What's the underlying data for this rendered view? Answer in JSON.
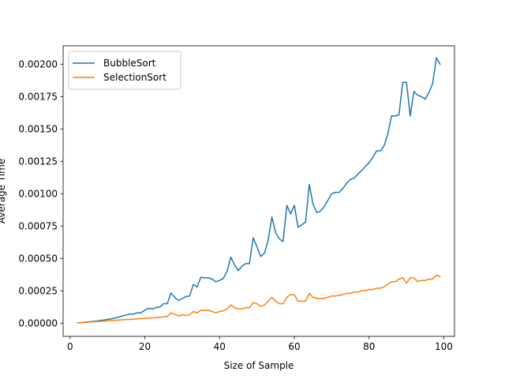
{
  "chart_data": {
    "type": "line",
    "title": "",
    "xlabel": "Size of Sample",
    "ylabel": "Average Time",
    "xlim": [
      -1.85,
      102.85
    ],
    "ylim": [
      -0.000102,
      0.002142
    ],
    "xticks": [
      0,
      20,
      40,
      60,
      80,
      100
    ],
    "xtick_labels": [
      "0",
      "20",
      "40",
      "60",
      "80",
      "100"
    ],
    "yticks": [
      0,
      0.00025,
      0.0005,
      0.00075,
      0.001,
      0.00125,
      0.0015,
      0.00175,
      0.002
    ],
    "ytick_labels": [
      "0.00000",
      "0.00025",
      "0.00050",
      "0.00075",
      "0.00100",
      "0.00125",
      "0.00150",
      "0.00175",
      "0.00200"
    ],
    "grid": false,
    "legend_position": "top-left",
    "x": [
      2,
      3,
      4,
      5,
      6,
      7,
      8,
      9,
      10,
      11,
      12,
      13,
      14,
      15,
      16,
      17,
      18,
      19,
      20,
      21,
      22,
      23,
      24,
      25,
      26,
      27,
      28,
      29,
      30,
      31,
      32,
      33,
      34,
      35,
      36,
      37,
      38,
      39,
      40,
      41,
      42,
      43,
      44,
      45,
      46,
      47,
      48,
      49,
      50,
      51,
      52,
      53,
      54,
      55,
      56,
      57,
      58,
      59,
      60,
      61,
      62,
      63,
      64,
      65,
      66,
      67,
      68,
      69,
      70,
      71,
      72,
      73,
      74,
      75,
      76,
      77,
      78,
      79,
      80,
      81,
      82,
      83,
      84,
      85,
      86,
      87,
      88,
      89,
      90,
      91,
      92,
      93,
      94,
      95,
      96,
      97,
      98,
      99
    ],
    "series": [
      {
        "name": "BubbleSort",
        "color": "#1f77b4",
        "values": [
          3e-06,
          4e-06,
          8e-06,
          1e-05,
          1.3e-05,
          1.6e-05,
          2e-05,
          2.4e-05,
          2.9e-05,
          3.3e-05,
          4e-05,
          4.7e-05,
          5.5e-05,
          6.3e-05,
          7e-05,
          7e-05,
          8e-05,
          8e-05,
          0.0001,
          0.000115,
          0.00011,
          0.00012,
          0.000125,
          0.00015,
          0.00015,
          0.000233,
          0.0002,
          0.000175,
          0.00019,
          0.000205,
          0.00021,
          0.0003,
          0.00028,
          0.000355,
          0.00035,
          0.00035,
          0.00034,
          0.00032,
          0.00033,
          0.000345,
          0.0004,
          0.00051,
          0.00045,
          0.000405,
          0.00044,
          0.00046,
          0.00046,
          0.00066,
          0.00059,
          0.000515,
          0.00054,
          0.00064,
          0.00082,
          0.0007,
          0.00065,
          0.00063,
          0.00091,
          0.000845,
          0.00091,
          0.00074,
          0.00076,
          0.00078,
          0.00107,
          0.00092,
          0.000855,
          0.000865,
          0.0009,
          0.00095,
          0.001,
          0.00101,
          0.00101,
          0.00104,
          0.00108,
          0.00111,
          0.00112,
          0.00115,
          0.00118,
          0.00121,
          0.00124,
          0.00128,
          0.00133,
          0.00133,
          0.00137,
          0.00146,
          0.0016,
          0.0016,
          0.00161,
          0.00186,
          0.00186,
          0.0016,
          0.00179,
          0.00176,
          0.00175,
          0.00173,
          0.00178,
          0.00185,
          0.00205,
          0.002
        ]
      },
      {
        "name": "SelectionSort",
        "color": "#ff7f0e",
        "values": [
          2e-06,
          4e-06,
          6e-06,
          8e-06,
          1e-05,
          1.2e-05,
          1.4e-05,
          1.6e-05,
          1.8e-05,
          2e-05,
          2.2e-05,
          2.4e-05,
          2.6e-05,
          2.8e-05,
          2.9e-05,
          3.1e-05,
          3.3e-05,
          3.5e-05,
          3.7e-05,
          3.9e-05,
          4.1e-05,
          4.2e-05,
          4.4e-05,
          5e-05,
          5e-05,
          8e-05,
          7e-05,
          5.5e-05,
          6.5e-05,
          6e-05,
          6.5e-05,
          9e-05,
          8e-05,
          0.0001,
          0.0001,
          0.0001,
          9e-05,
          8e-05,
          9e-05,
          9.5e-05,
          0.00011,
          0.00014,
          0.00012,
          0.00011,
          0.00011,
          0.00012,
          0.00012,
          0.00016,
          0.00015,
          0.00013,
          0.00014,
          0.00017,
          0.0002,
          0.00017,
          0.00015,
          0.00015,
          0.0002,
          0.00022,
          0.00022,
          0.00017,
          0.00017,
          0.00017,
          0.00023,
          0.0002,
          0.00019,
          0.00019,
          0.00019,
          0.0002,
          0.00021,
          0.00021,
          0.000215,
          0.00022,
          0.00023,
          0.00023,
          0.00024,
          0.00024,
          0.00025,
          0.00025,
          0.00026,
          0.00026,
          0.00027,
          0.00027,
          0.00028,
          0.0003,
          0.00032,
          0.00032,
          0.00034,
          0.00035,
          0.00031,
          0.00035,
          0.00035,
          0.00032,
          0.00033,
          0.00033,
          0.00034,
          0.00034,
          0.00037,
          0.00036
        ]
      }
    ]
  }
}
